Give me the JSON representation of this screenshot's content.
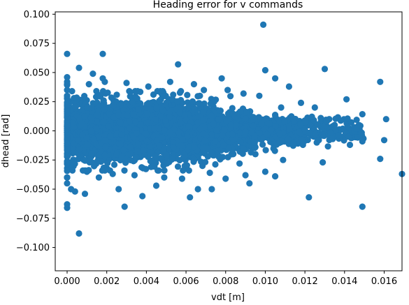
{
  "chart_data": {
    "type": "scatter",
    "title": "Heading error for v commands",
    "xlabel": "vdt [m]",
    "ylabel": "dhead [rad]",
    "xlim": [
      -0.0006,
      0.0169
    ],
    "ylim": [
      -0.12,
      0.102
    ],
    "xticks": [
      0.0,
      0.002,
      0.004,
      0.006,
      0.008,
      0.01,
      0.012,
      0.014,
      0.016
    ],
    "xtick_labels": [
      "0.000",
      "0.002",
      "0.004",
      "0.006",
      "0.008",
      "0.010",
      "0.012",
      "0.014",
      "0.016"
    ],
    "yticks": [
      0.1,
      0.075,
      0.05,
      0.025,
      0.0,
      -0.025,
      -0.05,
      -0.075,
      -0.1
    ],
    "ytick_labels": [
      "0.100",
      "0.075",
      "0.050",
      "0.025",
      "0.000",
      "−0.025",
      "−0.050",
      "−0.075",
      "−0.100"
    ],
    "grid": false,
    "marker_color": "#1f77b4",
    "points": [
      [
        0.0,
        0.066
      ],
      [
        0.0,
        0.046
      ],
      [
        0.0,
        0.04
      ],
      [
        0.0,
        0.035
      ],
      [
        0.0,
        0.03
      ],
      [
        0.0,
        -0.063
      ],
      [
        0.0,
        -0.066
      ],
      [
        0.0,
        -0.04
      ],
      [
        0.0,
        -0.045
      ],
      [
        0.0006,
        -0.088
      ],
      [
        0.0006,
        0.054
      ],
      [
        0.0002,
        -0.05
      ],
      [
        0.0004,
        -0.052
      ],
      [
        0.0009,
        -0.054
      ],
      [
        0.0013,
        0.049
      ],
      [
        0.0018,
        0.066
      ],
      [
        0.0018,
        0.045
      ],
      [
        0.0026,
        -0.05
      ],
      [
        0.0029,
        -0.065
      ],
      [
        0.0038,
        -0.056
      ],
      [
        0.0045,
        -0.047
      ],
      [
        0.0056,
        0.057
      ],
      [
        0.0062,
        -0.057
      ],
      [
        0.0066,
        -0.05
      ],
      [
        0.0073,
        -0.05
      ],
      [
        0.0078,
        0.045
      ],
      [
        0.008,
        -0.041
      ],
      [
        0.009,
        -0.038
      ],
      [
        0.0092,
        -0.045
      ],
      [
        0.0099,
        0.091
      ],
      [
        0.01,
        0.052
      ],
      [
        0.01,
        -0.035
      ],
      [
        0.0105,
        0.045
      ],
      [
        0.0105,
        -0.039
      ],
      [
        0.0112,
        0.038
      ],
      [
        0.0122,
        -0.057
      ],
      [
        0.013,
        0.053
      ],
      [
        0.0129,
        -0.027
      ],
      [
        0.0141,
        0.027
      ],
      [
        0.0149,
        -0.065
      ],
      [
        0.0158,
        0.042
      ],
      [
        0.0158,
        -0.024
      ],
      [
        0.0161,
        0.01
      ],
      [
        0.016,
        -0.008
      ],
      [
        0.0169,
        -0.037
      ],
      [
        0.0128,
        0.011
      ],
      [
        0.0131,
        0.008
      ],
      [
        0.0135,
        0.005
      ],
      [
        0.0142,
        -0.005
      ],
      [
        0.0146,
        0.002
      ],
      [
        0.0149,
        -0.009
      ],
      [
        0.0118,
        0.024
      ],
      [
        0.0119,
        -0.012
      ],
      [
        0.0125,
        0.02
      ],
      [
        0.0127,
        -0.008
      ],
      [
        0.0109,
        -0.025
      ],
      [
        0.0108,
        0.02
      ],
      [
        0.0097,
        0.03
      ],
      [
        0.0095,
        -0.02
      ],
      [
        0.0089,
        0.032
      ],
      [
        0.0087,
        -0.028
      ],
      [
        0.0081,
        0.035
      ],
      [
        0.0069,
        0.035
      ],
      [
        0.0072,
        -0.036
      ],
      [
        0.0064,
        0.04
      ],
      [
        0.0058,
        -0.041
      ],
      [
        0.0052,
        0.042
      ],
      [
        0.0049,
        -0.04
      ],
      [
        0.0041,
        0.038
      ],
      [
        0.0034,
        -0.038
      ],
      [
        0.003,
        0.041
      ],
      [
        0.0023,
        -0.037
      ],
      [
        0.0019,
        0.042
      ],
      [
        0.0016,
        -0.04
      ],
      [
        0.0011,
        0.04
      ],
      [
        0.001,
        -0.035
      ]
    ]
  }
}
